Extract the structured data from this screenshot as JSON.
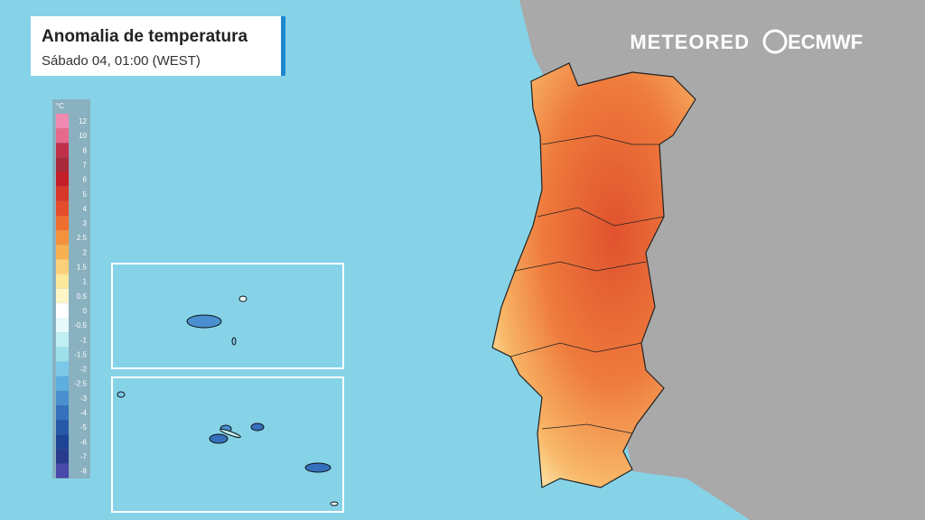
{
  "header": {
    "title": "Anomalia de temperatura",
    "subtitle": "Sábado 04, 01:00 (WEST)"
  },
  "legend": {
    "unit": "°C",
    "items": [
      {
        "value": 12,
        "color": "#f08ab0"
      },
      {
        "value": 10,
        "color": "#e66a8c"
      },
      {
        "value": 8,
        "color": "#c0304a"
      },
      {
        "value": 7,
        "color": "#a8283a"
      },
      {
        "value": 6,
        "color": "#c41e28"
      },
      {
        "value": 5,
        "color": "#d8362a"
      },
      {
        "value": 4,
        "color": "#e44c2a"
      },
      {
        "value": 3,
        "color": "#ee6e30"
      },
      {
        "value": 2.5,
        "color": "#f4923c"
      },
      {
        "value": 2,
        "color": "#f8b050"
      },
      {
        "value": 1.5,
        "color": "#fcd078"
      },
      {
        "value": 1,
        "color": "#fde89c"
      },
      {
        "value": 0.5,
        "color": "#fff6c8"
      },
      {
        "value": 0,
        "color": "#ffffff"
      },
      {
        "value": -0.5,
        "color": "#e6fafa"
      },
      {
        "value": -1,
        "color": "#bfeff0"
      },
      {
        "value": -1.5,
        "color": "#9ee0ea"
      },
      {
        "value": -2,
        "color": "#7cc8e8"
      },
      {
        "value": -2.5,
        "color": "#5eaee0"
      },
      {
        "value": -3,
        "color": "#4a90d0"
      },
      {
        "value": -4,
        "color": "#3470bc"
      },
      {
        "value": -5,
        "color": "#2658a8"
      },
      {
        "value": -6,
        "color": "#1c4494"
      },
      {
        "value": -7,
        "color": "#283c8c"
      },
      {
        "value": -8,
        "color": "#4a48a8"
      }
    ]
  },
  "logos": [
    "METEORED",
    "ECMWF"
  ]
}
